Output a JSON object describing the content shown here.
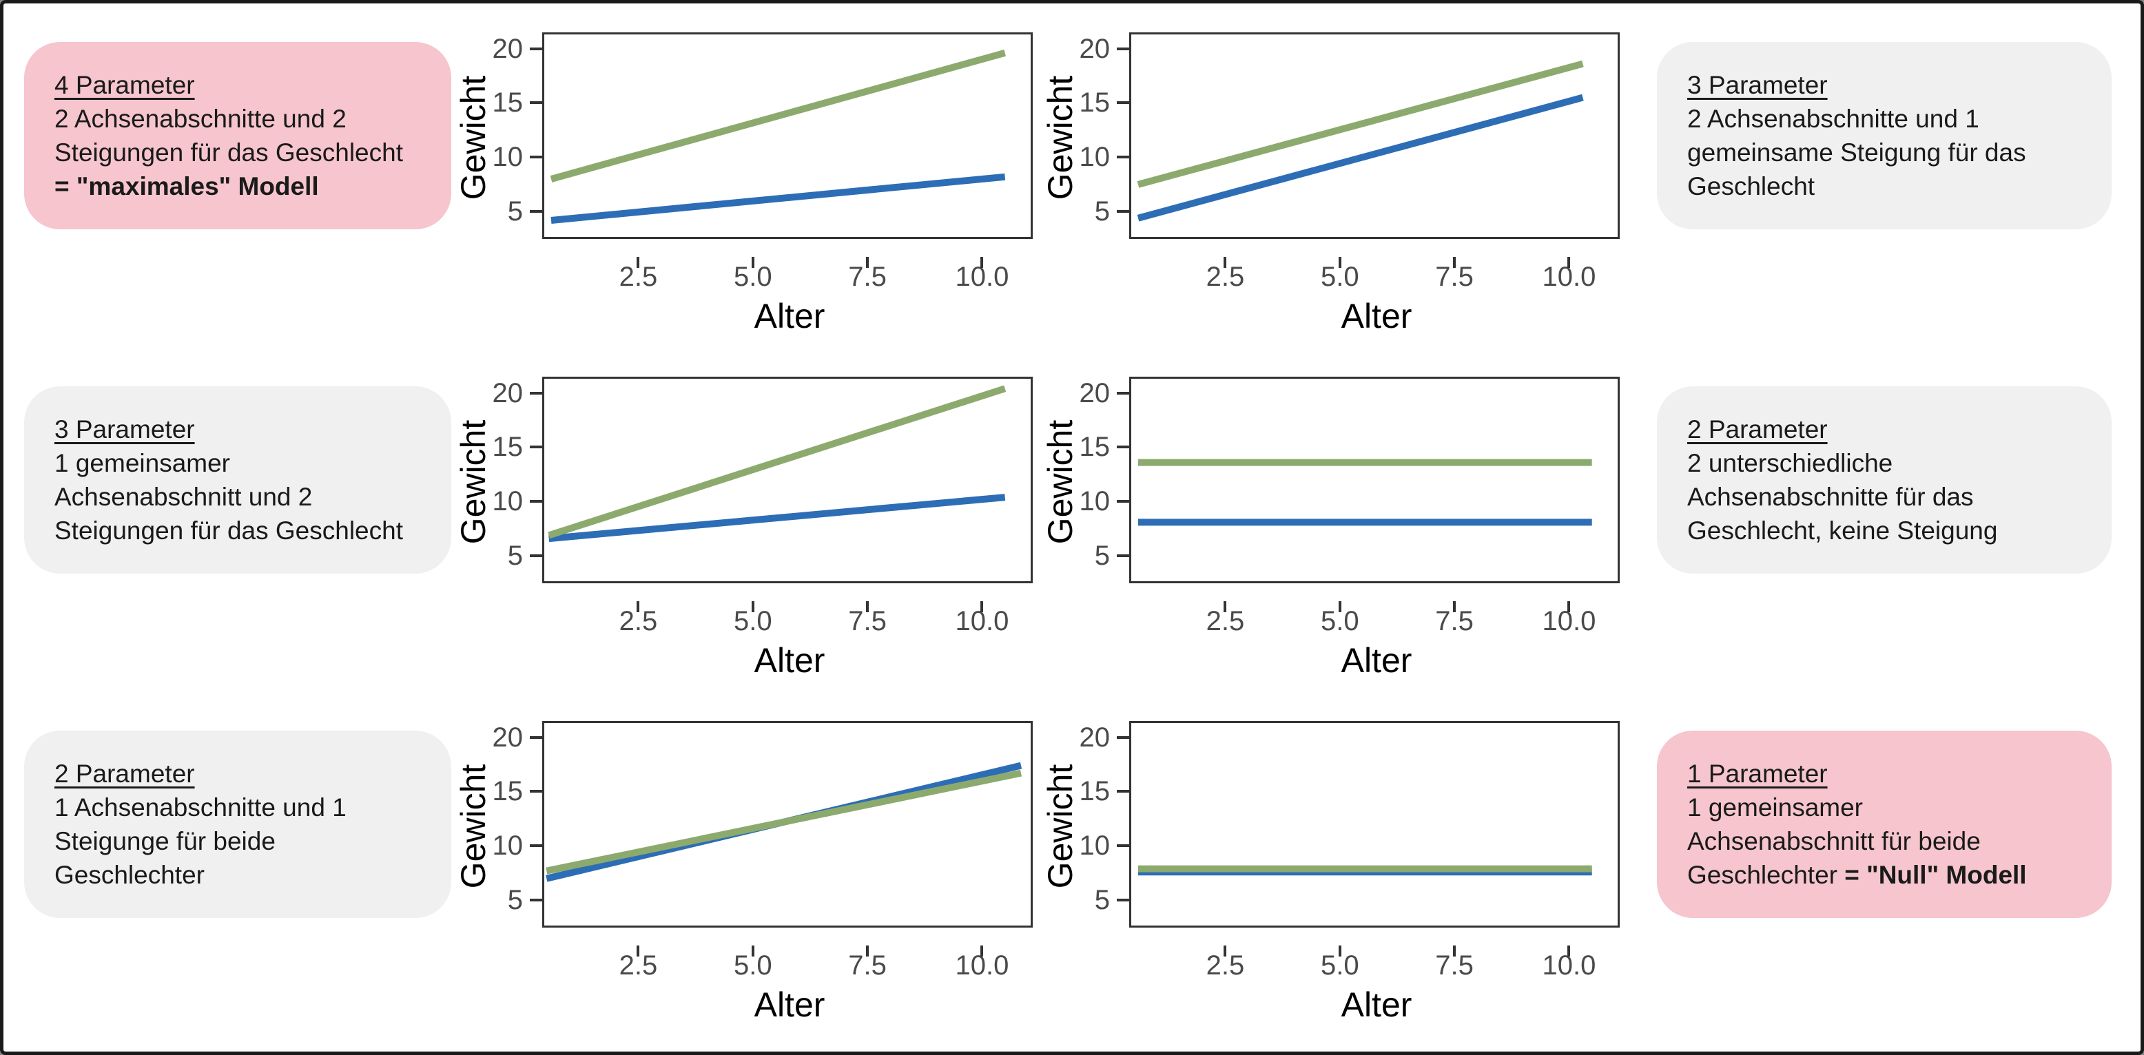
{
  "colors": {
    "green": "#8caa6e",
    "blue": "#2d6db5",
    "pink_box": "#f6c5cd",
    "gray_box": "#f0f0f0",
    "panel_border": "#333333",
    "tick_text": "#4a4a4a",
    "axis_title": "#000000",
    "text": "#1a1a1a",
    "frame_border": "#1a1a1a",
    "background": "#ffffff"
  },
  "boxes": [
    {
      "variant": "pink",
      "position": "row1-left",
      "title": "4 Parameter",
      "lines": [
        [
          {
            "text": "2 Achsenabschnitte und 2",
            "bold": false
          }
        ],
        [
          {
            "text": "Steigungen für das Geschlecht",
            "bold": false
          }
        ],
        [
          {
            "text": "= \"maximales\" Modell",
            "bold": true
          }
        ]
      ]
    },
    {
      "variant": "gray",
      "position": "row1-right",
      "title": "3 Parameter",
      "lines": [
        [
          {
            "text": "2 Achsenabschnitte und 1",
            "bold": false
          }
        ],
        [
          {
            "text": "gemeinsame Steigung für das",
            "bold": false
          }
        ],
        [
          {
            "text": "Geschlecht",
            "bold": false
          }
        ]
      ]
    },
    {
      "variant": "gray",
      "position": "row2-left",
      "title": "3 Parameter",
      "lines": [
        [
          {
            "text": "1 gemeinsamer",
            "bold": false
          }
        ],
        [
          {
            "text": "Achsenabschnitt und 2",
            "bold": false
          }
        ],
        [
          {
            "text": "Steigungen für das Geschlecht",
            "bold": false
          }
        ]
      ]
    },
    {
      "variant": "gray",
      "position": "row2-right",
      "title": "2 Parameter",
      "lines": [
        [
          {
            "text": "2 unterschiedliche",
            "bold": false
          }
        ],
        [
          {
            "text": "Achsenabschnitte für das",
            "bold": false
          }
        ],
        [
          {
            "text": "Geschlecht, keine Steigung",
            "bold": false
          }
        ]
      ]
    },
    {
      "variant": "gray",
      "position": "row3-left",
      "title": "2 Parameter",
      "lines": [
        [
          {
            "text": "1 Achsenabschnitte und 1",
            "bold": false
          }
        ],
        [
          {
            "text": "Steigunge für beide",
            "bold": false
          }
        ],
        [
          {
            "text": "Geschlechter",
            "bold": false
          }
        ]
      ]
    },
    {
      "variant": "pink",
      "position": "row3-right",
      "title": "1 Parameter",
      "lines": [
        [
          {
            "text": "1 gemeinsamer",
            "bold": false
          }
        ],
        [
          {
            "text": "Achsenabschnitt für beide",
            "bold": false
          }
        ],
        [
          {
            "text": "Geschlechter ",
            "bold": false
          },
          {
            "text": "= \"Null\" Modell",
            "bold": true
          }
        ]
      ]
    }
  ],
  "chart_data": [
    {
      "type": "line",
      "title": "",
      "xlabel": "Alter",
      "ylabel": "Gewicht",
      "xlim": [
        0.45,
        11.15
      ],
      "ylim": [
        2.3,
        21.3
      ],
      "grid": false,
      "legend": "none",
      "xticks": [
        2.5,
        5.0,
        7.5,
        10.0
      ],
      "xtick_labels": [
        "2.5",
        "5.0",
        "7.5",
        "10.0"
      ],
      "yticks": [
        20,
        15,
        10,
        5
      ],
      "ytick_labels": [
        "20",
        "15",
        "10",
        "5"
      ],
      "series": [
        {
          "name": "blue_line",
          "color": "blue",
          "points": [
            [
              0.6,
              4.2
            ],
            [
              10.5,
              8.2
            ]
          ]
        },
        {
          "name": "green_line",
          "color": "green",
          "points": [
            [
              0.6,
              8.0
            ],
            [
              10.5,
              19.6
            ]
          ]
        }
      ]
    },
    {
      "type": "line",
      "title": "",
      "xlabel": "Alter",
      "ylabel": "Gewicht",
      "xlim": [
        0.45,
        11.15
      ],
      "ylim": [
        2.3,
        21.3
      ],
      "grid": false,
      "legend": "none",
      "xticks": [
        2.5,
        5.0,
        7.5,
        10.0
      ],
      "xtick_labels": [
        "2.5",
        "5.0",
        "7.5",
        "10.0"
      ],
      "yticks": [
        20,
        15,
        10,
        5
      ],
      "ytick_labels": [
        "20",
        "15",
        "10",
        "5"
      ],
      "series": [
        {
          "name": "blue_line",
          "color": "blue",
          "points": [
            [
              0.6,
              4.4
            ],
            [
              10.3,
              15.5
            ]
          ]
        },
        {
          "name": "green_line",
          "color": "green",
          "points": [
            [
              0.6,
              7.5
            ],
            [
              10.3,
              18.6
            ]
          ]
        }
      ]
    },
    {
      "type": "line",
      "title": "",
      "xlabel": "Alter",
      "ylabel": "Gewicht",
      "xlim": [
        0.45,
        11.15
      ],
      "ylim": [
        2.3,
        21.3
      ],
      "grid": false,
      "legend": "none",
      "xticks": [
        2.5,
        5.0,
        7.5,
        10.0
      ],
      "xtick_labels": [
        "2.5",
        "5.0",
        "7.5",
        "10.0"
      ],
      "yticks": [
        20,
        15,
        10,
        5
      ],
      "ytick_labels": [
        "20",
        "15",
        "10",
        "5"
      ],
      "series": [
        {
          "name": "blue_line",
          "color": "blue",
          "points": [
            [
              0.55,
              6.6
            ],
            [
              10.5,
              10.4
            ]
          ]
        },
        {
          "name": "green_line",
          "color": "green",
          "points": [
            [
              0.55,
              6.9
            ],
            [
              10.5,
              20.4
            ]
          ]
        }
      ]
    },
    {
      "type": "line",
      "title": "",
      "xlabel": "Alter",
      "ylabel": "Gewicht",
      "xlim": [
        0.45,
        11.15
      ],
      "ylim": [
        2.3,
        21.3
      ],
      "grid": false,
      "legend": "none",
      "xticks": [
        2.5,
        5.0,
        7.5,
        10.0
      ],
      "xtick_labels": [
        "2.5",
        "5.0",
        "7.5",
        "10.0"
      ],
      "yticks": [
        20,
        15,
        10,
        5
      ],
      "ytick_labels": [
        "20",
        "15",
        "10",
        "5"
      ],
      "series": [
        {
          "name": "blue_line",
          "color": "blue",
          "points": [
            [
              0.6,
              8.1
            ],
            [
              10.5,
              8.1
            ]
          ]
        },
        {
          "name": "green_line",
          "color": "green",
          "points": [
            [
              0.6,
              13.6
            ],
            [
              10.5,
              13.6
            ]
          ]
        }
      ]
    },
    {
      "type": "line",
      "title": "",
      "xlabel": "Alter",
      "ylabel": "Gewicht",
      "xlim": [
        0.45,
        11.15
      ],
      "ylim": [
        2.3,
        21.3
      ],
      "grid": false,
      "legend": "none",
      "xticks": [
        2.5,
        5.0,
        7.5,
        10.0
      ],
      "xtick_labels": [
        "2.5",
        "5.0",
        "7.5",
        "10.0"
      ],
      "yticks": [
        20,
        15,
        10,
        5
      ],
      "ytick_labels": [
        "20",
        "15",
        "10",
        "5"
      ],
      "series": [
        {
          "name": "blue_line",
          "color": "blue",
          "points": [
            [
              0.5,
              7.0
            ],
            [
              10.85,
              17.4
            ]
          ]
        },
        {
          "name": "green_line",
          "color": "green",
          "points": [
            [
              0.5,
              7.7
            ],
            [
              10.85,
              16.7
            ]
          ]
        }
      ]
    },
    {
      "type": "line",
      "title": "",
      "xlabel": "Alter",
      "ylabel": "Gewicht",
      "xlim": [
        0.45,
        11.15
      ],
      "ylim": [
        2.3,
        21.3
      ],
      "grid": false,
      "legend": "none",
      "xticks": [
        2.5,
        5.0,
        7.5,
        10.0
      ],
      "xtick_labels": [
        "2.5",
        "5.0",
        "7.5",
        "10.0"
      ],
      "yticks": [
        20,
        15,
        10,
        5
      ],
      "ytick_labels": [
        "20",
        "15",
        "10",
        "5"
      ],
      "series": [
        {
          "name": "blue_line",
          "color": "blue",
          "points": [
            [
              0.6,
              7.6
            ],
            [
              10.5,
              7.6
            ]
          ]
        },
        {
          "name": "green_line",
          "color": "green",
          "points": [
            [
              0.6,
              7.9
            ],
            [
              10.5,
              7.9
            ]
          ]
        }
      ]
    }
  ]
}
